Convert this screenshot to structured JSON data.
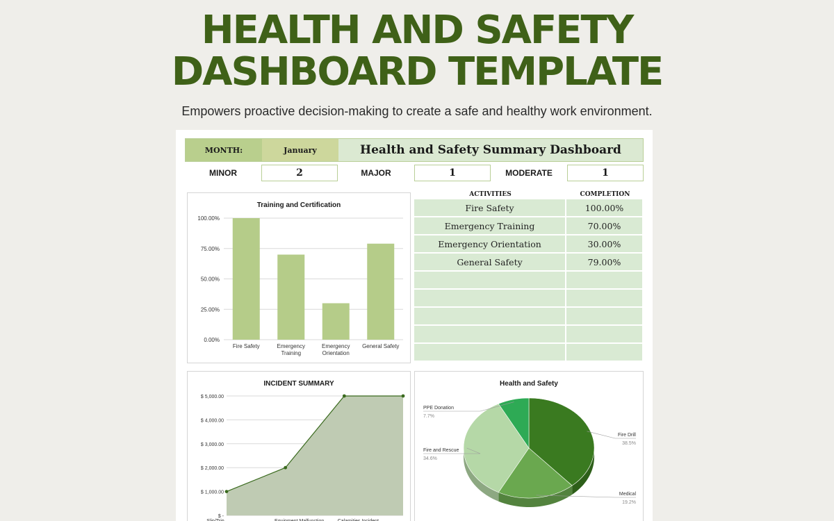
{
  "hero": {
    "title_line1": "HEALTH AND SAFETY",
    "title_line2": "DASHBOARD TEMPLATE",
    "subtitle": "Empowers proactive decision-making to create a safe and healthy work environment."
  },
  "header": {
    "month_label": "MONTH:",
    "month_value": "January",
    "title": "Health and Safety Summary Dashboard"
  },
  "severity": {
    "minor_label": "MINOR",
    "minor_value": "2",
    "major_label": "MAJOR",
    "major_value": "1",
    "moderate_label": "MODERATE",
    "moderate_value": "1"
  },
  "activities": {
    "col1": "ACTIVITIES",
    "col2": "COMPLETION",
    "rows": [
      {
        "activity": "Fire Safety",
        "completion": "100.00%"
      },
      {
        "activity": "Emergency Training",
        "completion": "70.00%"
      },
      {
        "activity": "Emergency Orientation",
        "completion": "30.00%"
      },
      {
        "activity": "General Safety",
        "completion": "79.00%"
      },
      {
        "activity": "",
        "completion": ""
      },
      {
        "activity": "",
        "completion": ""
      },
      {
        "activity": "",
        "completion": ""
      },
      {
        "activity": "",
        "completion": ""
      },
      {
        "activity": "",
        "completion": ""
      }
    ]
  },
  "colors": {
    "brand_green": "#3f6118",
    "bar_green": "#b5cc89",
    "area_fill": "#bfcbb3",
    "area_line": "#3a6a1e",
    "table_fill": "#d9ead3"
  },
  "chart_data": [
    {
      "type": "bar",
      "title": "Training and Certification",
      "categories": [
        "Fire Safety",
        "Emergency Training",
        "Emergency Orientation",
        "General Safety"
      ],
      "category_lines": [
        [
          "Fire Safety"
        ],
        [
          "Emergency",
          "Training"
        ],
        [
          "Emergency",
          "Orientation"
        ],
        [
          "General Safety"
        ]
      ],
      "values": [
        100,
        70,
        30,
        79
      ],
      "ylim": [
        0,
        100
      ],
      "yticks": [
        "0.00%",
        "25.00%",
        "50.00%",
        "75.00%",
        "100.00%"
      ],
      "grid": true
    },
    {
      "type": "area",
      "title": "INCIDENT SUMMARY",
      "categories": [
        "Slip/Trip",
        "Equipment Malfunction",
        "Calamities Incident",
        ""
      ],
      "values": [
        1000,
        2000,
        5000,
        5000
      ],
      "ylim": [
        0,
        5000
      ],
      "yticks": [
        "$ -",
        "$ 1,000.00",
        "$ 2,000.00",
        "$ 3,000.00",
        "$ 4,000.00",
        "$ 5,000.00"
      ],
      "grid": true
    },
    {
      "type": "pie",
      "title": "Health and Safety",
      "style": "3d",
      "slices": [
        {
          "name": "Fire Drill",
          "value": 38.5,
          "label": "38.5%",
          "color": "#3a7a20"
        },
        {
          "name": "Medical",
          "value": 19.2,
          "label": "19.2%",
          "color": "#6aa84f"
        },
        {
          "name": "Fire and Rescue",
          "value": 34.6,
          "label": "34.6%",
          "color": "#b5d8a7"
        },
        {
          "name": "PPE Donation",
          "value": 7.7,
          "label": "7.7%",
          "color": "#2eaa55"
        }
      ]
    }
  ]
}
